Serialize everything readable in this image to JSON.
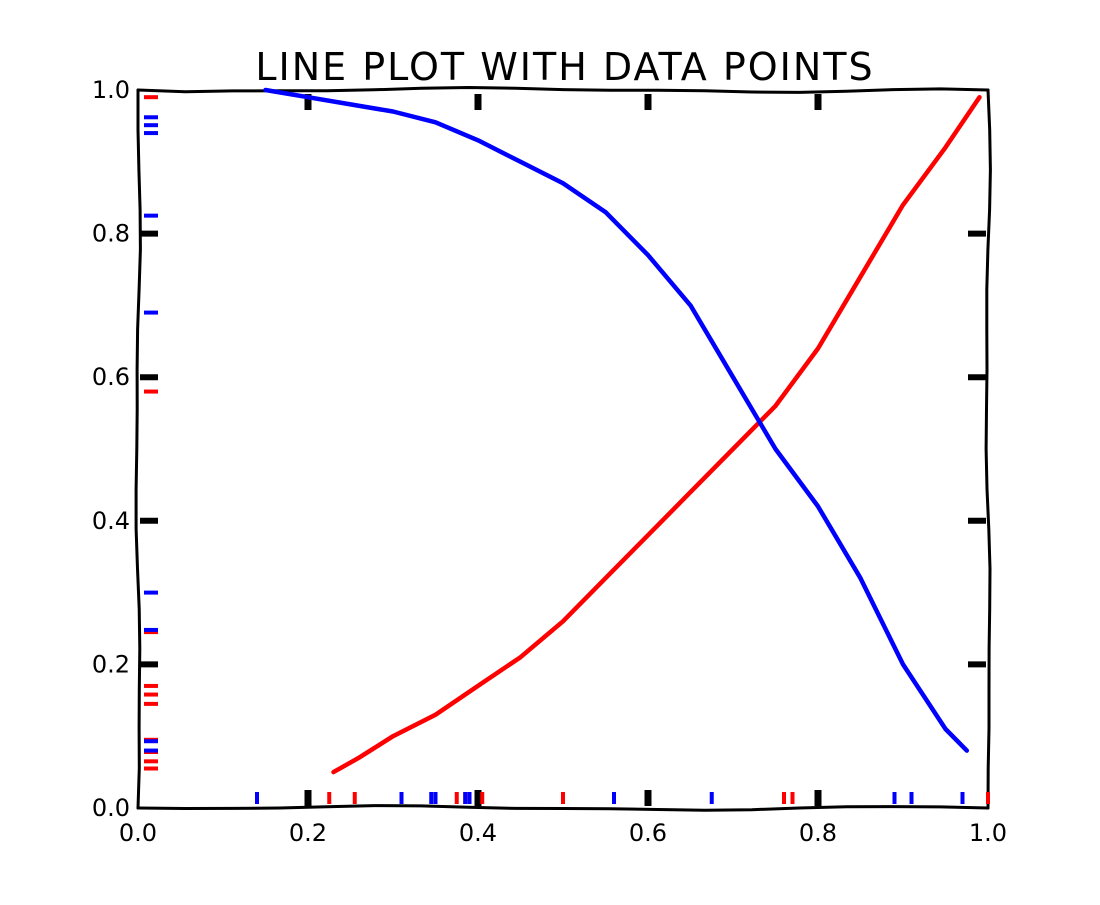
{
  "chart_data": {
    "type": "line",
    "title": "LINE PLOT WITH DATA POINTS",
    "xlabel": "",
    "ylabel": "",
    "xlim": [
      0.0,
      1.0
    ],
    "ylim": [
      0.0,
      1.0
    ],
    "xticks": [
      0.0,
      0.2,
      0.4,
      0.6,
      0.8,
      1.0
    ],
    "yticks": [
      0.0,
      0.2,
      0.4,
      0.6,
      0.8,
      1.0
    ],
    "xtick_labels": [
      "0.0",
      "0.2",
      "0.4",
      "0.6",
      "0.8",
      "1.0"
    ],
    "ytick_labels": [
      "0.0",
      "0.2",
      "0.4",
      "0.6",
      "0.8",
      "1.0"
    ],
    "grid": false,
    "legend": "none",
    "style": "xkcd",
    "series": [
      {
        "color": "#ff0000",
        "x": [
          0.23,
          0.26,
          0.3,
          0.35,
          0.4,
          0.45,
          0.5,
          0.55,
          0.6,
          0.65,
          0.7,
          0.75,
          0.8,
          0.85,
          0.9,
          0.95,
          0.99
        ],
        "y": [
          0.05,
          0.07,
          0.1,
          0.13,
          0.17,
          0.21,
          0.26,
          0.32,
          0.38,
          0.44,
          0.5,
          0.56,
          0.64,
          0.74,
          0.84,
          0.92,
          0.99
        ],
        "rug_x": [
          0.225,
          0.255,
          0.31,
          0.375,
          0.385,
          0.405,
          0.5,
          0.76,
          0.77,
          1.0
        ],
        "rug_y": [
          0.055,
          0.065,
          0.078,
          0.095,
          0.145,
          0.158,
          0.17,
          0.245,
          0.58,
          0.99
        ]
      },
      {
        "color": "#0000ff",
        "x": [
          0.15,
          0.2,
          0.25,
          0.3,
          0.35,
          0.4,
          0.45,
          0.5,
          0.55,
          0.6,
          0.65,
          0.7,
          0.75,
          0.8,
          0.85,
          0.9,
          0.95,
          0.975
        ],
        "y": [
          1.0,
          0.99,
          0.98,
          0.97,
          0.955,
          0.93,
          0.9,
          0.87,
          0.83,
          0.77,
          0.7,
          0.6,
          0.5,
          0.42,
          0.32,
          0.2,
          0.11,
          0.08
        ],
        "rug_x": [
          0.14,
          0.31,
          0.345,
          0.35,
          0.385,
          0.39,
          0.56,
          0.675,
          0.89,
          0.91,
          0.97
        ],
        "rug_y": [
          0.08,
          0.093,
          0.248,
          0.3,
          0.69,
          0.825,
          0.94,
          0.951,
          0.962
        ]
      }
    ]
  }
}
